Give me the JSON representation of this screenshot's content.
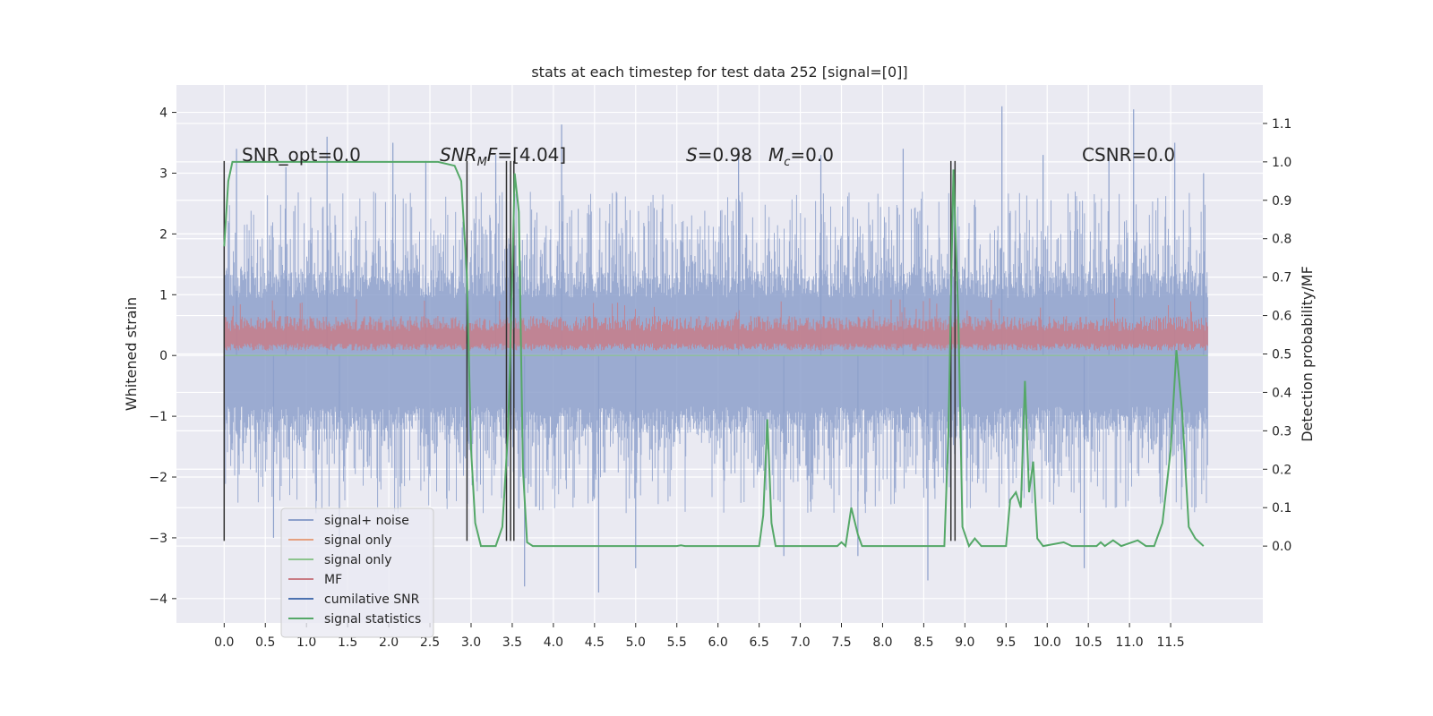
{
  "chart_data": {
    "type": "line",
    "title": "stats at each timestep for test data 252 [signal=[0]]",
    "ylabel_left": "Whitened strain",
    "ylabel_right": "Detection probability/MF",
    "xlim": [
      -0.58,
      12.62
    ],
    "ylim_left": [
      -4.4,
      4.45
    ],
    "ylim_right": [
      -0.2,
      1.2
    ],
    "xticks": [
      0.0,
      0.5,
      1.0,
      1.5,
      2.0,
      2.5,
      3.0,
      3.5,
      4.0,
      4.5,
      5.0,
      5.5,
      6.0,
      6.5,
      7.0,
      7.5,
      8.0,
      8.5,
      9.0,
      9.5,
      10.0,
      10.5,
      11.0,
      11.5
    ],
    "xtick_labels": [
      "0.0",
      "0.5",
      "1.0",
      "1.5",
      "2.0",
      "2.5",
      "3.0",
      "3.5",
      "4.0",
      "4.5",
      "5.0",
      "5.5",
      "6.0",
      "6.5",
      "7.0",
      "7.5",
      "8.0",
      "8.5",
      "9.0",
      "9.5",
      "10.0",
      "10.5",
      "11.0",
      "11.5"
    ],
    "yticks_left": [
      -4,
      -3,
      -2,
      -1,
      0,
      1,
      2,
      3,
      4
    ],
    "ytick_labels_left": [
      "−4",
      "−3",
      "−2",
      "−1",
      "0",
      "1",
      "2",
      "3",
      "4"
    ],
    "yticks_right": [
      0.0,
      0.1,
      0.2,
      0.3,
      0.4,
      0.5,
      0.6,
      0.7,
      0.8,
      0.9,
      1.0,
      1.1
    ],
    "ytick_labels_right": [
      "0.0",
      "0.1",
      "0.2",
      "0.3",
      "0.4",
      "0.5",
      "0.6",
      "0.7",
      "0.8",
      "0.9",
      "1.0",
      "1.1"
    ],
    "grid": true,
    "legend_position": "lower-left",
    "legend": [
      {
        "label": "signal+ noise",
        "color": "#8da0cb"
      },
      {
        "label": "signal only",
        "color": "#e5a07f"
      },
      {
        "label": "signal only",
        "color": "#8dc48d"
      },
      {
        "label": "MF",
        "color": "#c97b84"
      },
      {
        "label": "cumilative SNR",
        "color": "#4c72b0"
      },
      {
        "label": "signal statistics",
        "color": "#55a868"
      }
    ],
    "annotations": {
      "snr_opt": "SNR_opt=0.0",
      "snr_mf_prefix": "SNR",
      "snr_mf_sub": "M",
      "snr_mf_suffix": "F=[4.04]",
      "s_stat": "S=0.98",
      "mc_prefix": "M",
      "mc_sub": "c",
      "mc_suffix": "=0.0",
      "csnr": "CSNR=0.0"
    },
    "series": [
      {
        "name": "signal+ noise",
        "color": "#8da0cb",
        "axis": "left",
        "x_range": [
          0.0,
          11.95
        ],
        "band": {
          "core_low": -1.2,
          "core_high": 1.35,
          "typical_low": -2.6,
          "typical_high": 2.7
        },
        "peaks": [
          [
            0.15,
            3.4
          ],
          [
            0.6,
            -3.0
          ],
          [
            0.75,
            3.1
          ],
          [
            1.25,
            3.6
          ],
          [
            1.4,
            -3.0
          ],
          [
            2.05,
            3.5
          ],
          [
            2.45,
            3.2
          ],
          [
            3.3,
            3.3
          ],
          [
            3.65,
            -3.8
          ],
          [
            4.1,
            3.8
          ],
          [
            4.55,
            -3.9
          ],
          [
            5.0,
            -3.5
          ],
          [
            6.25,
            3.4
          ],
          [
            6.8,
            -3.3
          ],
          [
            7.25,
            3.3
          ],
          [
            7.7,
            -3.3
          ],
          [
            8.25,
            3.4
          ],
          [
            8.55,
            -3.7
          ],
          [
            9.45,
            4.1
          ],
          [
            9.95,
            3.3
          ],
          [
            10.45,
            -3.5
          ],
          [
            10.75,
            3.3
          ],
          [
            11.05,
            4.05
          ],
          [
            11.55,
            3.5
          ],
          [
            11.9,
            3.0
          ]
        ]
      },
      {
        "name": "MF",
        "color": "#c97b84",
        "axis": "left",
        "x_range": [
          0.0,
          11.95
        ],
        "band": {
          "low": 0.08,
          "high": 0.65,
          "max": 0.95
        }
      },
      {
        "name": "signal statistics",
        "color": "#55a868",
        "axis": "right",
        "points": [
          [
            0.0,
            0.78
          ],
          [
            0.05,
            0.95
          ],
          [
            0.1,
            1.0
          ],
          [
            2.6,
            1.0
          ],
          [
            2.8,
            0.99
          ],
          [
            2.88,
            0.95
          ],
          [
            2.95,
            0.7
          ],
          [
            3.0,
            0.25
          ],
          [
            3.05,
            0.06
          ],
          [
            3.12,
            0.0
          ],
          [
            3.3,
            0.0
          ],
          [
            3.38,
            0.05
          ],
          [
            3.45,
            0.3
          ],
          [
            3.5,
            0.7
          ],
          [
            3.53,
            0.97
          ],
          [
            3.58,
            0.87
          ],
          [
            3.63,
            0.2
          ],
          [
            3.68,
            0.01
          ],
          [
            3.75,
            0.0
          ],
          [
            5.5,
            0.0
          ],
          [
            5.55,
            0.002
          ],
          [
            5.6,
            0.0
          ],
          [
            6.5,
            0.0
          ],
          [
            6.55,
            0.08
          ],
          [
            6.6,
            0.33
          ],
          [
            6.65,
            0.06
          ],
          [
            6.7,
            0.0
          ],
          [
            7.45,
            0.0
          ],
          [
            7.5,
            0.01
          ],
          [
            7.55,
            0.0
          ],
          [
            7.62,
            0.1
          ],
          [
            7.7,
            0.03
          ],
          [
            7.75,
            0.0
          ],
          [
            8.75,
            0.0
          ],
          [
            8.8,
            0.3
          ],
          [
            8.86,
            0.98
          ],
          [
            8.92,
            0.6
          ],
          [
            8.97,
            0.05
          ],
          [
            9.05,
            0.0
          ],
          [
            9.12,
            0.02
          ],
          [
            9.2,
            0.0
          ],
          [
            9.5,
            0.0
          ],
          [
            9.55,
            0.12
          ],
          [
            9.62,
            0.14
          ],
          [
            9.68,
            0.1
          ],
          [
            9.73,
            0.43
          ],
          [
            9.78,
            0.14
          ],
          [
            9.83,
            0.22
          ],
          [
            9.88,
            0.02
          ],
          [
            9.95,
            0.0
          ],
          [
            10.2,
            0.01
          ],
          [
            10.3,
            0.0
          ],
          [
            10.6,
            0.0
          ],
          [
            10.65,
            0.01
          ],
          [
            10.7,
            0.0
          ],
          [
            10.8,
            0.015
          ],
          [
            10.9,
            0.0
          ],
          [
            11.1,
            0.015
          ],
          [
            11.2,
            0.0
          ],
          [
            11.3,
            0.0
          ],
          [
            11.4,
            0.06
          ],
          [
            11.5,
            0.25
          ],
          [
            11.57,
            0.51
          ],
          [
            11.64,
            0.35
          ],
          [
            11.72,
            0.05
          ],
          [
            11.8,
            0.02
          ],
          [
            11.9,
            0.0
          ]
        ]
      }
    ],
    "vertical_markers": {
      "color": "#333333",
      "x": [
        0.0,
        2.95,
        3.43,
        3.48,
        3.52,
        8.83,
        8.88
      ],
      "y_range": [
        -3.05,
        3.2
      ]
    }
  }
}
